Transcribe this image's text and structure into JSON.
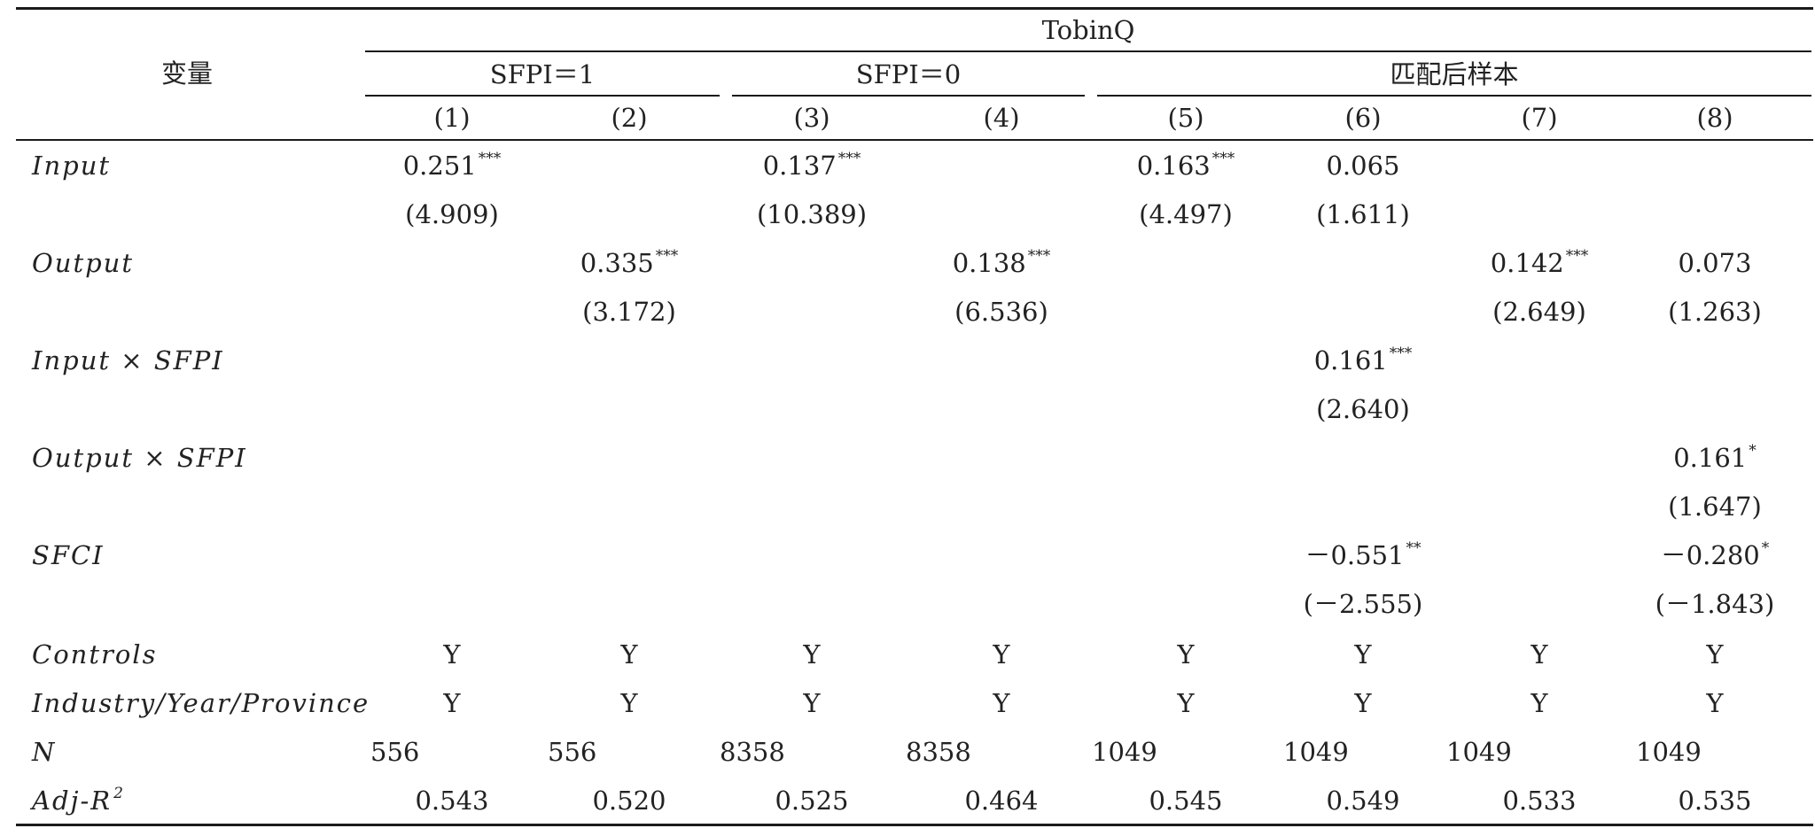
{
  "header": {
    "variable_label": "变量",
    "dependent_var": "TobinQ",
    "groups": [
      "SFPI＝1",
      "SFPI＝0",
      "匹配后样本"
    ],
    "columns": [
      "(1)",
      "(2)",
      "(3)",
      "(4)",
      "(5)",
      "(6)",
      "(7)",
      "(8)"
    ]
  },
  "rows": [
    {
      "label": "Input",
      "coef": [
        {
          "col": 0,
          "v": "0.251",
          "s": "***"
        },
        {
          "col": 2,
          "v": "0.137",
          "s": "***"
        },
        {
          "col": 4,
          "v": "0.163",
          "s": "***"
        },
        {
          "col": 5,
          "v": "0.065",
          "s": ""
        }
      ],
      "t": [
        {
          "col": 0,
          "v": "(4.909)"
        },
        {
          "col": 2,
          "v": "(10.389)"
        },
        {
          "col": 4,
          "v": "(4.497)"
        },
        {
          "col": 5,
          "v": "(1.611)"
        }
      ]
    },
    {
      "label": "Output",
      "coef": [
        {
          "col": 1,
          "v": "0.335",
          "s": "***"
        },
        {
          "col": 3,
          "v": "0.138",
          "s": "***"
        },
        {
          "col": 6,
          "v": "0.142",
          "s": "***"
        },
        {
          "col": 7,
          "v": "0.073",
          "s": ""
        }
      ],
      "t": [
        {
          "col": 1,
          "v": "(3.172)"
        },
        {
          "col": 3,
          "v": "(6.536)"
        },
        {
          "col": 6,
          "v": "(2.649)"
        },
        {
          "col": 7,
          "v": "(1.263)"
        }
      ]
    },
    {
      "label": "Input × SFPI",
      "coef": [
        {
          "col": 5,
          "v": "0.161",
          "s": "***"
        }
      ],
      "t": [
        {
          "col": 5,
          "v": "(2.640)"
        }
      ]
    },
    {
      "label": "Output × SFPI",
      "coef": [
        {
          "col": 7,
          "v": "0.161",
          "s": "*"
        }
      ],
      "t": [
        {
          "col": 7,
          "v": "(1.647)"
        }
      ]
    },
    {
      "label": "SFCI",
      "coef": [
        {
          "col": 5,
          "v": "－0.551",
          "s": "**"
        },
        {
          "col": 7,
          "v": "－0.280",
          "s": "*"
        }
      ],
      "t": [
        {
          "col": 5,
          "v": "(－2.555)"
        },
        {
          "col": 7,
          "v": "(－1.843)"
        }
      ]
    }
  ],
  "controls": {
    "label": "Controls",
    "values": [
      "Y",
      "Y",
      "Y",
      "Y",
      "Y",
      "Y",
      "Y",
      "Y"
    ]
  },
  "fixed_effects": {
    "label": "Industry/Year/Province",
    "values": [
      "Y",
      "Y",
      "Y",
      "Y",
      "Y",
      "Y",
      "Y",
      "Y"
    ]
  },
  "n": {
    "label": "N",
    "values": [
      "556",
      "556",
      "8358",
      "8358",
      "1049",
      "1049",
      "1049",
      "1049"
    ]
  },
  "adj_r2": {
    "label": "Adj-R",
    "sup": "2",
    "values": [
      "0.543",
      "0.520",
      "0.525",
      "0.464",
      "0.545",
      "0.549",
      "0.533",
      "0.535"
    ]
  }
}
